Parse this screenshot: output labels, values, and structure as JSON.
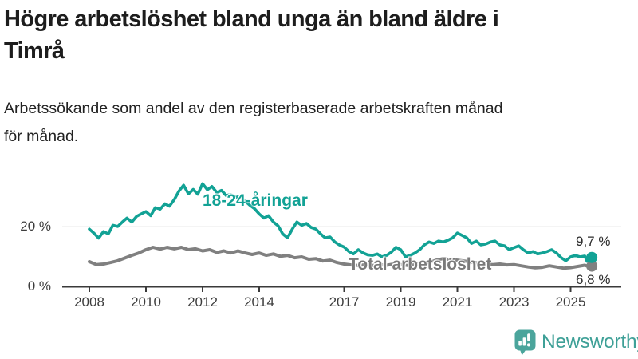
{
  "title": {
    "text": "Högre arbetslöshet bland unga än bland äldre i Timrå",
    "lines": [
      "Högre arbetslöshet bland unga än bland äldre i",
      "Timrå"
    ]
  },
  "subtitle": {
    "text": "Arbetssökande som andel av den registerbaserade arbetskraften månad för månad.",
    "lines": [
      "Arbetssökande som andel av den registerbaserade arbetskraften månad",
      "för månad."
    ]
  },
  "chart_data": {
    "type": "line",
    "title": "Högre arbetslöshet bland unga än bland äldre i Timrå",
    "subtitle": "Arbetssökande som andel av den registerbaserade arbetskraften månad för månad.",
    "unit": "%",
    "grid": "horizontal-only",
    "legend_position": "inline-labels",
    "x_axis": {
      "ticks": [
        2008,
        2010,
        2012,
        2014,
        2017,
        2019,
        2021,
        2023,
        2025
      ],
      "tick_labels": [
        "2008",
        "2010",
        "2012",
        "2014",
        "2017",
        "2019",
        "2021",
        "2023",
        "2025"
      ],
      "range": [
        2007.05,
        2026.8
      ]
    },
    "y_axis": {
      "tick_values": [
        0,
        20
      ],
      "tick_labels": [
        "0 %",
        "20 %"
      ],
      "range": [
        0,
        36
      ],
      "gridlines": [
        20
      ]
    },
    "series": [
      {
        "name": "18-24-åringar",
        "label": "18-24-åringar",
        "color": "#12A295",
        "end_label": "9,7 %",
        "end_value": 9.7,
        "points": [
          [
            2008.0,
            19.2
          ],
          [
            2008.17,
            17.8
          ],
          [
            2008.33,
            16.2
          ],
          [
            2008.5,
            18.4
          ],
          [
            2008.67,
            17.6
          ],
          [
            2008.83,
            20.5
          ],
          [
            2009.0,
            20.1
          ],
          [
            2009.17,
            21.6
          ],
          [
            2009.33,
            22.9
          ],
          [
            2009.5,
            21.6
          ],
          [
            2009.67,
            23.5
          ],
          [
            2009.83,
            24.3
          ],
          [
            2010.0,
            25.1
          ],
          [
            2010.17,
            23.7
          ],
          [
            2010.33,
            26.4
          ],
          [
            2010.5,
            25.9
          ],
          [
            2010.67,
            27.7
          ],
          [
            2010.83,
            26.9
          ],
          [
            2011.0,
            29.1
          ],
          [
            2011.17,
            32.0
          ],
          [
            2011.33,
            33.9
          ],
          [
            2011.5,
            31.0
          ],
          [
            2011.67,
            32.5
          ],
          [
            2011.83,
            30.9
          ],
          [
            2012.0,
            34.4
          ],
          [
            2012.17,
            32.4
          ],
          [
            2012.33,
            33.5
          ],
          [
            2012.5,
            31.5
          ],
          [
            2012.67,
            32.2
          ],
          [
            2012.83,
            30.5
          ],
          [
            2013.0,
            30.8
          ],
          [
            2013.17,
            29.8
          ],
          [
            2013.33,
            30.3
          ],
          [
            2013.5,
            28.6
          ],
          [
            2013.67,
            27.2
          ],
          [
            2013.83,
            26.1
          ],
          [
            2014.0,
            24.3
          ],
          [
            2014.17,
            22.9
          ],
          [
            2014.33,
            23.7
          ],
          [
            2014.5,
            21.6
          ],
          [
            2014.67,
            20.3
          ],
          [
            2014.83,
            17.6
          ],
          [
            2015.0,
            16.3
          ],
          [
            2015.17,
            19.2
          ],
          [
            2015.33,
            21.6
          ],
          [
            2015.5,
            20.5
          ],
          [
            2015.67,
            21.1
          ],
          [
            2015.83,
            19.8
          ],
          [
            2016.0,
            19.2
          ],
          [
            2016.17,
            17.6
          ],
          [
            2016.33,
            16.3
          ],
          [
            2016.5,
            16.6
          ],
          [
            2016.67,
            14.9
          ],
          [
            2016.83,
            13.9
          ],
          [
            2017.0,
            13.2
          ],
          [
            2017.17,
            11.7
          ],
          [
            2017.33,
            10.9
          ],
          [
            2017.5,
            12.3
          ],
          [
            2017.67,
            11.2
          ],
          [
            2017.83,
            10.6
          ],
          [
            2018.0,
            10.4
          ],
          [
            2018.17,
            10.9
          ],
          [
            2018.33,
            9.9
          ],
          [
            2018.5,
            10.4
          ],
          [
            2018.67,
            11.5
          ],
          [
            2018.83,
            13.1
          ],
          [
            2019.0,
            12.3
          ],
          [
            2019.17,
            9.9
          ],
          [
            2019.33,
            10.4
          ],
          [
            2019.5,
            11.2
          ],
          [
            2019.67,
            12.3
          ],
          [
            2019.83,
            13.9
          ],
          [
            2020.0,
            14.9
          ],
          [
            2020.17,
            14.4
          ],
          [
            2020.33,
            15.2
          ],
          [
            2020.5,
            14.9
          ],
          [
            2020.67,
            15.5
          ],
          [
            2020.83,
            16.3
          ],
          [
            2021.0,
            17.9
          ],
          [
            2021.17,
            17.1
          ],
          [
            2021.33,
            16.3
          ],
          [
            2021.5,
            14.4
          ],
          [
            2021.67,
            15.2
          ],
          [
            2021.83,
            13.9
          ],
          [
            2022.0,
            14.2
          ],
          [
            2022.17,
            14.9
          ],
          [
            2022.33,
            15.2
          ],
          [
            2022.5,
            13.9
          ],
          [
            2022.67,
            13.6
          ],
          [
            2022.83,
            12.3
          ],
          [
            2023.0,
            13.0
          ],
          [
            2023.17,
            13.6
          ],
          [
            2023.33,
            12.3
          ],
          [
            2023.5,
            11.2
          ],
          [
            2023.67,
            11.7
          ],
          [
            2023.83,
            10.9
          ],
          [
            2024.0,
            11.2
          ],
          [
            2024.17,
            11.7
          ],
          [
            2024.33,
            12.3
          ],
          [
            2024.5,
            11.2
          ],
          [
            2024.67,
            9.6
          ],
          [
            2024.83,
            8.6
          ],
          [
            2025.0,
            9.9
          ],
          [
            2025.17,
            10.4
          ],
          [
            2025.33,
            9.9
          ],
          [
            2025.5,
            10.2
          ],
          [
            2025.58,
            8.4
          ],
          [
            2025.67,
            8.8
          ],
          [
            2025.75,
            9.7
          ]
        ]
      },
      {
        "name": "Total arbetslöshet",
        "label": "Total arbetslöshet",
        "color": "#808080",
        "end_label": "6,8 %",
        "end_value": 6.8,
        "points": [
          [
            2008.0,
            8.3
          ],
          [
            2008.25,
            7.3
          ],
          [
            2008.5,
            7.5
          ],
          [
            2008.75,
            8.0
          ],
          [
            2009.0,
            8.6
          ],
          [
            2009.25,
            9.5
          ],
          [
            2009.5,
            10.4
          ],
          [
            2009.75,
            11.2
          ],
          [
            2010.0,
            12.3
          ],
          [
            2010.25,
            13.1
          ],
          [
            2010.5,
            12.5
          ],
          [
            2010.75,
            13.1
          ],
          [
            2011.0,
            12.6
          ],
          [
            2011.25,
            13.1
          ],
          [
            2011.5,
            12.3
          ],
          [
            2011.75,
            12.6
          ],
          [
            2012.0,
            11.9
          ],
          [
            2012.25,
            12.3
          ],
          [
            2012.5,
            11.4
          ],
          [
            2012.75,
            11.9
          ],
          [
            2013.0,
            11.2
          ],
          [
            2013.25,
            11.9
          ],
          [
            2013.5,
            11.2
          ],
          [
            2013.75,
            10.7
          ],
          [
            2014.0,
            11.2
          ],
          [
            2014.25,
            10.4
          ],
          [
            2014.5,
            10.9
          ],
          [
            2014.75,
            10.1
          ],
          [
            2015.0,
            10.4
          ],
          [
            2015.25,
            9.6
          ],
          [
            2015.5,
            9.9
          ],
          [
            2015.75,
            9.1
          ],
          [
            2016.0,
            9.3
          ],
          [
            2016.25,
            8.5
          ],
          [
            2016.5,
            8.8
          ],
          [
            2016.75,
            8.0
          ],
          [
            2017.0,
            7.5
          ],
          [
            2017.25,
            7.2
          ],
          [
            2017.5,
            7.0
          ],
          [
            2017.75,
            7.3
          ],
          [
            2018.0,
            7.0
          ],
          [
            2018.25,
            7.3
          ],
          [
            2018.5,
            7.1
          ],
          [
            2018.75,
            7.5
          ],
          [
            2019.0,
            7.3
          ],
          [
            2019.25,
            7.0
          ],
          [
            2019.5,
            7.4
          ],
          [
            2019.75,
            7.8
          ],
          [
            2020.0,
            8.0
          ],
          [
            2020.25,
            8.8
          ],
          [
            2020.5,
            9.3
          ],
          [
            2020.75,
            9.0
          ],
          [
            2021.0,
            8.8
          ],
          [
            2021.25,
            8.5
          ],
          [
            2021.5,
            8.1
          ],
          [
            2021.75,
            7.8
          ],
          [
            2022.0,
            7.5
          ],
          [
            2022.25,
            7.3
          ],
          [
            2022.5,
            7.5
          ],
          [
            2022.75,
            7.2
          ],
          [
            2023.0,
            7.3
          ],
          [
            2023.25,
            6.9
          ],
          [
            2023.5,
            6.5
          ],
          [
            2023.75,
            6.2
          ],
          [
            2024.0,
            6.4
          ],
          [
            2024.25,
            6.9
          ],
          [
            2024.5,
            6.5
          ],
          [
            2024.75,
            6.1
          ],
          [
            2025.0,
            6.3
          ],
          [
            2025.25,
            6.7
          ],
          [
            2025.5,
            7.1
          ],
          [
            2025.67,
            6.5
          ],
          [
            2025.75,
            6.8
          ]
        ]
      }
    ]
  },
  "colors": {
    "youth_line": "#12A295",
    "total_line": "#808080",
    "gridline": "#e3e3e3",
    "axis": "#3a3a3a",
    "logo_icon": "#4BA59C",
    "logo_text": "#3EA097"
  },
  "logo": {
    "brand": "Newsworthy",
    "icon": "newsworthy-chart-speech-bubble-icon"
  }
}
